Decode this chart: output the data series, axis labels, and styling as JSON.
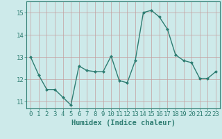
{
  "x": [
    0,
    1,
    2,
    3,
    4,
    5,
    6,
    7,
    8,
    9,
    10,
    11,
    12,
    13,
    14,
    15,
    16,
    17,
    18,
    19,
    20,
    21,
    22,
    23
  ],
  "y": [
    13.0,
    12.2,
    11.55,
    11.55,
    11.2,
    10.85,
    12.6,
    12.4,
    12.35,
    12.35,
    13.05,
    11.95,
    11.85,
    12.85,
    15.0,
    15.1,
    14.8,
    14.25,
    13.1,
    12.85,
    12.75,
    12.05,
    12.05,
    12.35
  ],
  "line_color": "#2e7d72",
  "marker": "D",
  "marker_size": 2.0,
  "bg_color": "#cdeaea",
  "grid_color_major": "#c4a0a0",
  "grid_color_minor": "#c4a0a0",
  "xlabel": "Humidex (Indice chaleur)",
  "xlabel_fontsize": 7.5,
  "tick_fontsize": 6.5,
  "ylim": [
    10.7,
    15.5
  ],
  "yticks": [
    11,
    12,
    13,
    14,
    15
  ],
  "xticks": [
    0,
    1,
    2,
    3,
    4,
    5,
    6,
    7,
    8,
    9,
    10,
    11,
    12,
    13,
    14,
    15,
    16,
    17,
    18,
    19,
    20,
    21,
    22,
    23
  ],
  "line_width": 1.0
}
